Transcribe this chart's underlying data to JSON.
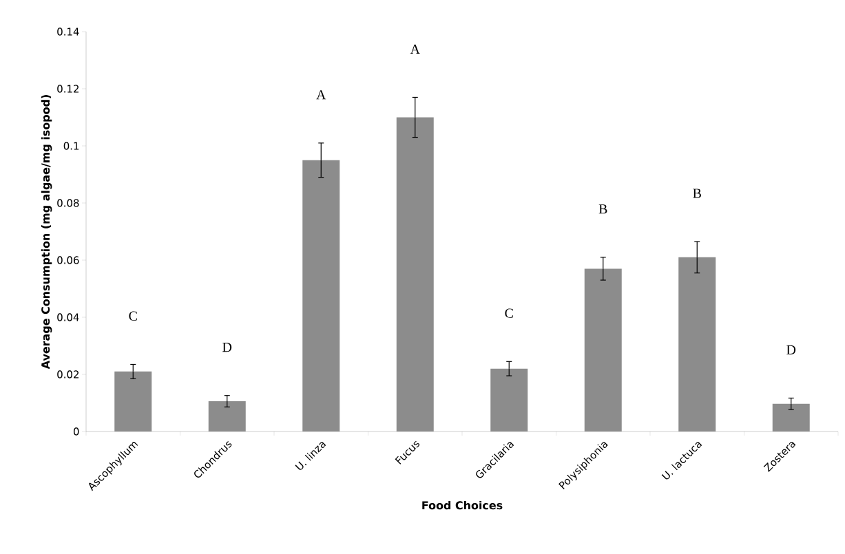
{
  "chart_data": {
    "type": "bar",
    "xlabel": "Food Choices",
    "ylabel": "Average Consumption (mg algae/mg isopod)",
    "categories": [
      "Ascophyllum",
      "Chondrus",
      "U. linza",
      "Fucus",
      "Gracilaria",
      "Polysiphonia",
      "U. lactuca",
      "Zostera"
    ],
    "values": [
      0.021,
      0.0106,
      0.095,
      0.11,
      0.022,
      0.057,
      0.061,
      0.0097
    ],
    "errors": [
      0.0025,
      0.002,
      0.006,
      0.007,
      0.0025,
      0.004,
      0.0055,
      0.002
    ],
    "color": "#8c8c8c",
    "ylim": [
      0,
      0.14
    ],
    "yticks": [
      0,
      0.02,
      0.04,
      0.06,
      0.08,
      0.1,
      0.12,
      0.14
    ],
    "grid": false,
    "annotations": [
      "C",
      "D",
      "A",
      "A",
      "C",
      "B",
      "B",
      "D"
    ]
  }
}
